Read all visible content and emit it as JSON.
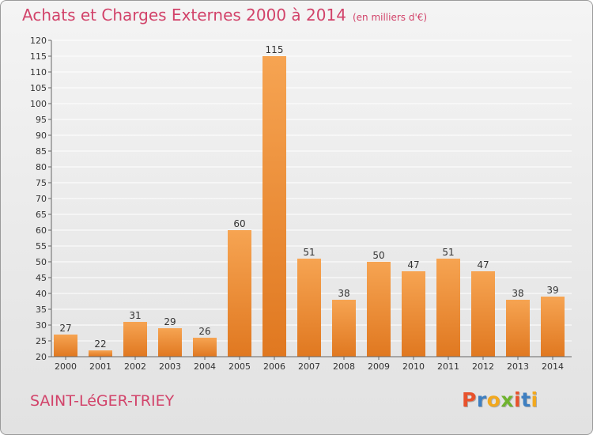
{
  "title": "Achats et Charges Externes 2000 à 2014",
  "unit": "(en milliers d'€)",
  "commune": "SAINT-LéGER-TRIEY",
  "logo": {
    "text": "Proxiti",
    "colors": [
      "#e8522c",
      "#3e7fc1",
      "#f2a81d",
      "#6fb32e",
      "#e8522c",
      "#3e7fc1",
      "#f2a81d"
    ]
  },
  "colors": {
    "bar_light": "#f6a452",
    "bar_dark": "#e07820",
    "title": "#d2436a",
    "grid": "#ffffff"
  },
  "chart_data": {
    "type": "bar",
    "categories": [
      "2000",
      "2001",
      "2002",
      "2003",
      "2004",
      "2005",
      "2006",
      "2007",
      "2008",
      "2009",
      "2010",
      "2011",
      "2012",
      "2013",
      "2014"
    ],
    "values": [
      27,
      22,
      31,
      29,
      26,
      60,
      115,
      51,
      38,
      50,
      47,
      51,
      47,
      38,
      39
    ],
    "ylim": [
      20,
      120
    ],
    "yticks": [
      20,
      25,
      30,
      35,
      40,
      45,
      50,
      55,
      60,
      65,
      70,
      75,
      80,
      85,
      90,
      95,
      100,
      105,
      110,
      115,
      120
    ],
    "grid": true
  }
}
